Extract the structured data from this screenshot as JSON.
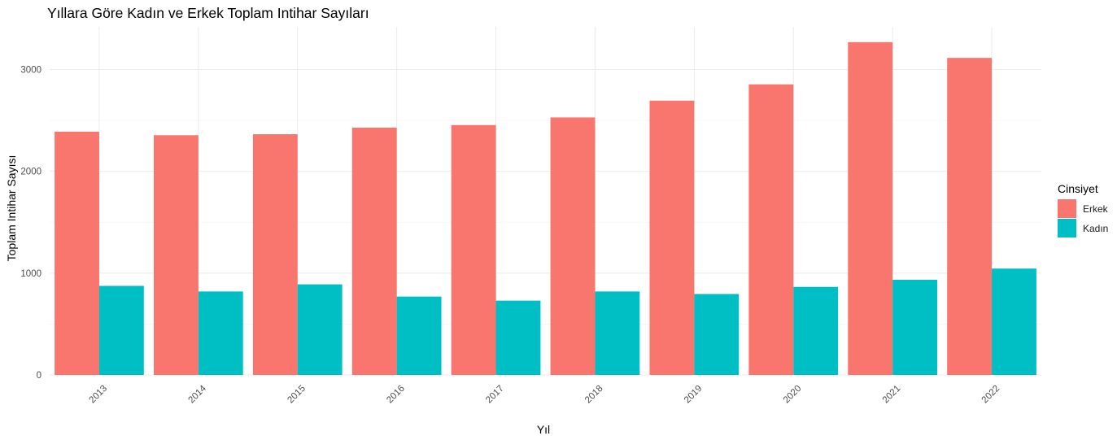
{
  "chart_data": {
    "type": "bar",
    "title": "Yıllara Göre Kadın ve Erkek Toplam Intihar Sayıları",
    "xlabel": "Yıl",
    "ylabel": "Toplam Intihar Sayısı",
    "categories": [
      "2013",
      "2014",
      "2015",
      "2016",
      "2017",
      "2018",
      "2019",
      "2020",
      "2021",
      "2022"
    ],
    "series": [
      {
        "name": "Erkek",
        "color": "#F8766D",
        "values": [
          2390,
          2355,
          2365,
          2430,
          2455,
          2530,
          2695,
          2855,
          3270,
          3115
        ]
      },
      {
        "name": "Kadın",
        "color": "#00BFC4",
        "values": [
          875,
          820,
          890,
          770,
          730,
          820,
          795,
          865,
          935,
          1045
        ]
      }
    ],
    "ylim": [
      0,
      3420
    ],
    "yticks": [
      0,
      1000,
      2000,
      3000
    ],
    "grid": true,
    "legend": {
      "title": "Cinsiyet",
      "position": "right"
    }
  }
}
